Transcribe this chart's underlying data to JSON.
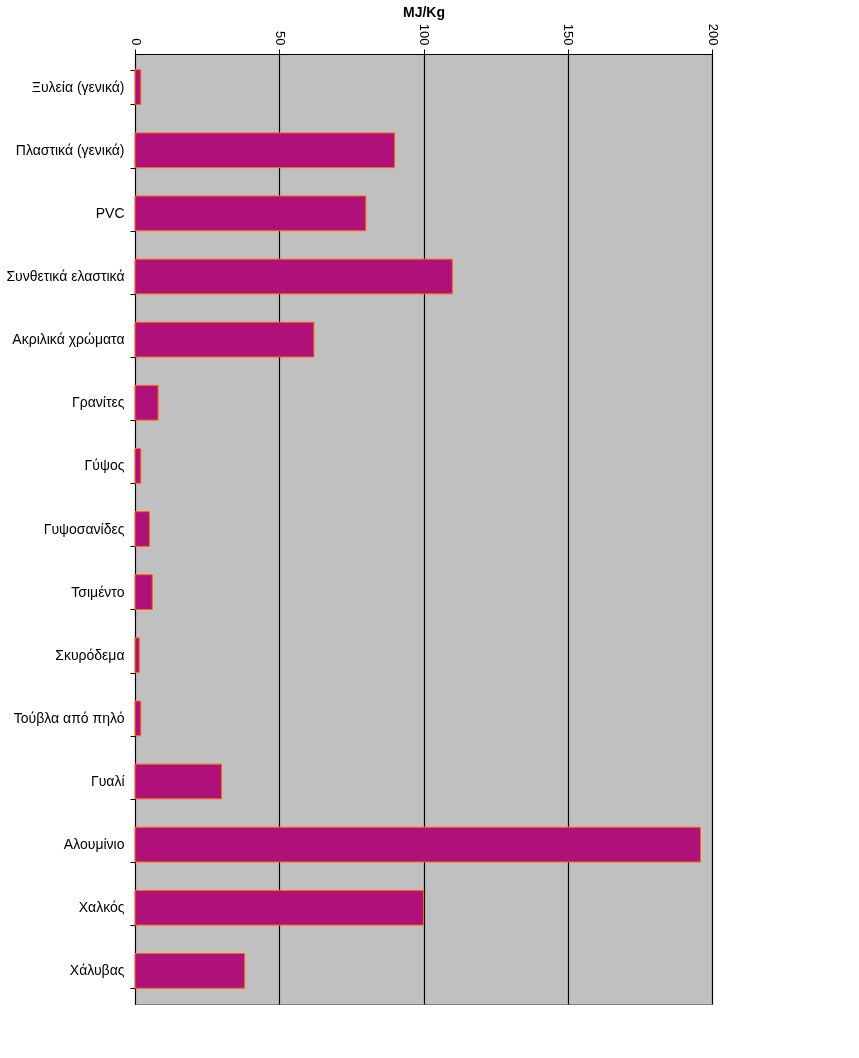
{
  "chart_data": {
    "type": "bar",
    "orientation": "horizontal",
    "xlabel": "MJ/Kg",
    "categories": [
      "Ξυλεία (γενικά)",
      "Πλαστικά (γενικά)",
      "PVC",
      "Συνθετικά ελαστικά",
      "Ακριλικά χρώματα",
      "Γρανίτες",
      "Γύψος",
      "Γυψοσανίδες",
      "Τσιμέντο",
      "Σκυρόδεμα",
      "Τούβλα από πηλό",
      "Γυαλί",
      "Αλουμίνιο",
      "Χαλκός",
      "Χάλυβας"
    ],
    "values": [
      2,
      90,
      80,
      110,
      62,
      8,
      2,
      5,
      6,
      1.5,
      2,
      30,
      196,
      100,
      38
    ],
    "color": "#b0107a",
    "xlim": [
      0,
      200
    ],
    "xticks": [
      0,
      50,
      100,
      150,
      200
    ],
    "grid": "x"
  }
}
